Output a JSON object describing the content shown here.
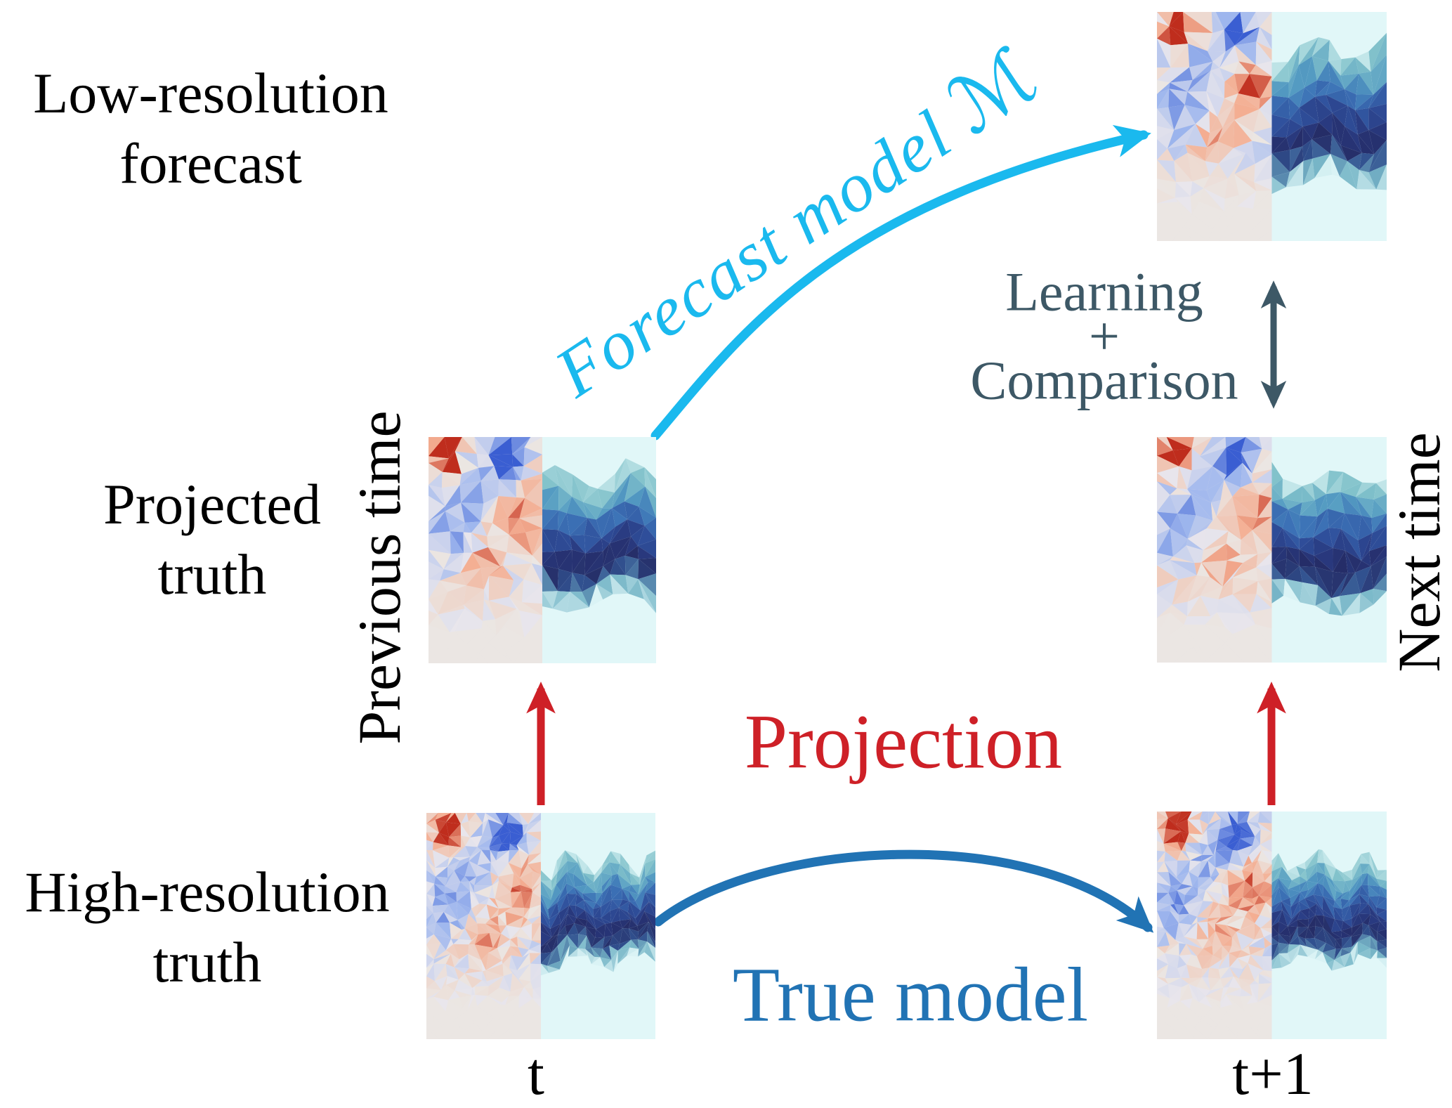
{
  "figure": {
    "row_labels": {
      "low_resolution_forecast": {
        "line1": "Low-resolution",
        "line2": "forecast"
      },
      "projected_truth": {
        "line1": "Projected",
        "line2": "truth"
      },
      "high_resolution_truth": {
        "line1": "High-resolution",
        "line2": "truth"
      }
    },
    "axis_labels": {
      "previous_time": "Previous time",
      "next_time": "Next time",
      "time_t": "t",
      "time_t_plus_1": "t+1"
    },
    "annotations": {
      "forecast_model_text": "Forecast model",
      "forecast_model_symbol": "ℳ",
      "true_model": "True model",
      "projection": "Projection",
      "learning_comparison": {
        "line1": "Learning",
        "line2": "+",
        "line3": "Comparison"
      }
    },
    "colors": {
      "forecast_model": "#1ab9ee",
      "true_model": "#2173b4",
      "projection": "#ce2027",
      "learning_comparison": "#3d5866",
      "label_text": "#000000"
    }
  }
}
